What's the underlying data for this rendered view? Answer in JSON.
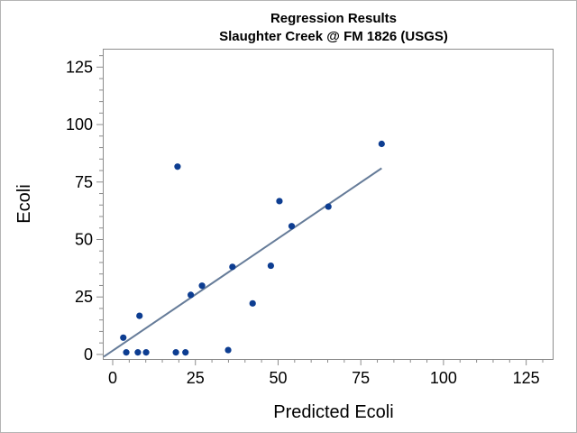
{
  "chart_data": {
    "type": "scatter",
    "title": "Regression Results",
    "subtitle": "Slaughter Creek @ FM 1826 (USGS)",
    "xlabel": "Predicted Ecoli",
    "ylabel": "Ecoli",
    "xlim": [
      -3,
      133
    ],
    "ylim": [
      -2,
      133
    ],
    "xticks": [
      "0",
      "25",
      "50",
      "75",
      "100",
      "125"
    ],
    "yticks": [
      "0",
      "25",
      "50",
      "75",
      "100",
      "125"
    ],
    "xtick_values": [
      0,
      25,
      50,
      75,
      100,
      125
    ],
    "ytick_values": [
      0,
      25,
      50,
      75,
      100,
      125
    ],
    "minor_tick_step": 5,
    "grid": false,
    "legend": "none",
    "points": [
      {
        "x": 3.2,
        "y": 7.3
      },
      {
        "x": 4.1,
        "y": 0.9
      },
      {
        "x": 7.6,
        "y": 0.9
      },
      {
        "x": 8.1,
        "y": 16.8
      },
      {
        "x": 10.1,
        "y": 0.9
      },
      {
        "x": 19.1,
        "y": 0.9
      },
      {
        "x": 19.6,
        "y": 81.7
      },
      {
        "x": 22.0,
        "y": 0.9
      },
      {
        "x": 23.6,
        "y": 25.9
      },
      {
        "x": 27.0,
        "y": 29.9
      },
      {
        "x": 34.9,
        "y": 1.9
      },
      {
        "x": 36.2,
        "y": 38.1
      },
      {
        "x": 42.3,
        "y": 22.2
      },
      {
        "x": 47.8,
        "y": 38.6
      },
      {
        "x": 50.4,
        "y": 66.7
      },
      {
        "x": 54.1,
        "y": 55.8
      },
      {
        "x": 65.2,
        "y": 64.3
      },
      {
        "x": 81.3,
        "y": 91.6
      }
    ],
    "regression_line": {
      "x": [
        -2.7,
        81.3
      ],
      "y": [
        -1.0,
        81.0
      ]
    },
    "colors": {
      "points": "#0d3d91",
      "regression_line": "#667c99",
      "frame": "#8c8c8c",
      "outer_border": "#b4b4b4",
      "text": "#000000"
    }
  }
}
